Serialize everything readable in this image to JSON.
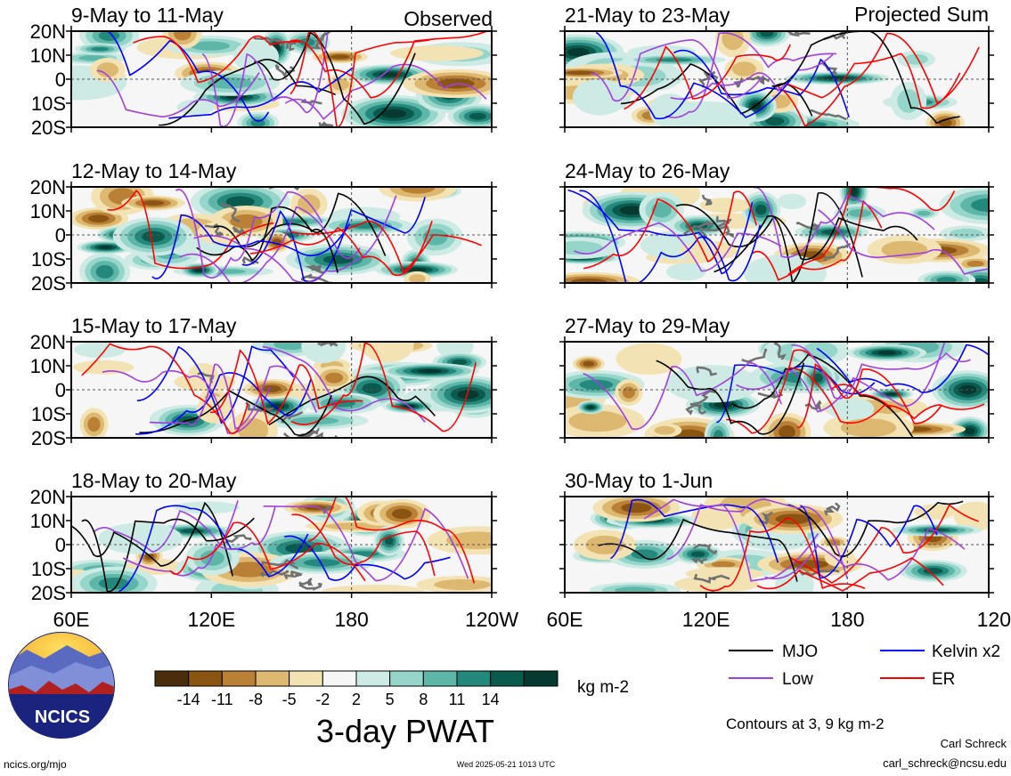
{
  "left_column_label": "Observed",
  "right_column_label": "Projected Sum",
  "panels_left": [
    {
      "title": "9-May to 11-May"
    },
    {
      "title": "12-May to 14-May"
    },
    {
      "title": "15-May to 17-May"
    },
    {
      "title": "18-May to 20-May"
    }
  ],
  "panels_right": [
    {
      "title": "21-May to 23-May"
    },
    {
      "title": "24-May to 26-May"
    },
    {
      "title": "27-May to 29-May"
    },
    {
      "title": "30-May to 1-Jun"
    }
  ],
  "lat_ticks": [
    "20N",
    "10N",
    "0",
    "10S",
    "20S"
  ],
  "lon_ticks": [
    "60E",
    "120E",
    "180",
    "120W"
  ],
  "colorbar": {
    "colors": [
      "#4a2e0c",
      "#8a5512",
      "#b98036",
      "#ddb870",
      "#f3e3b4",
      "#f6f6f6",
      "#cdeae4",
      "#96d5c9",
      "#5db6a8",
      "#24897c",
      "#0a5a4e",
      "#063a30"
    ],
    "tick_labels": [
      "-14",
      "-11",
      "-8",
      "-5",
      "-2",
      "2",
      "5",
      "8",
      "11",
      "14"
    ],
    "units": "kg m-2",
    "title": "3-day PWAT"
  },
  "legend": {
    "items": [
      {
        "label": "MJO",
        "color": "#000000"
      },
      {
        "label": "Kelvin x2",
        "color": "#0000ff"
      },
      {
        "label": "Low",
        "color": "#a040e0"
      },
      {
        "label": "ER",
        "color": "#ff0000"
      }
    ],
    "contour_note": "Contours at 3, 9 kg m-2"
  },
  "footer": {
    "left": "ncics.org/mjo",
    "center": "Wed 2025-05-21 1013 UTC",
    "author": "Carl Schreck",
    "email": "carl_schreck@ncsu.edu"
  },
  "logo_text": "NCICS",
  "colors": {
    "dry": "#b98036",
    "wet": "#0a5a4e"
  }
}
